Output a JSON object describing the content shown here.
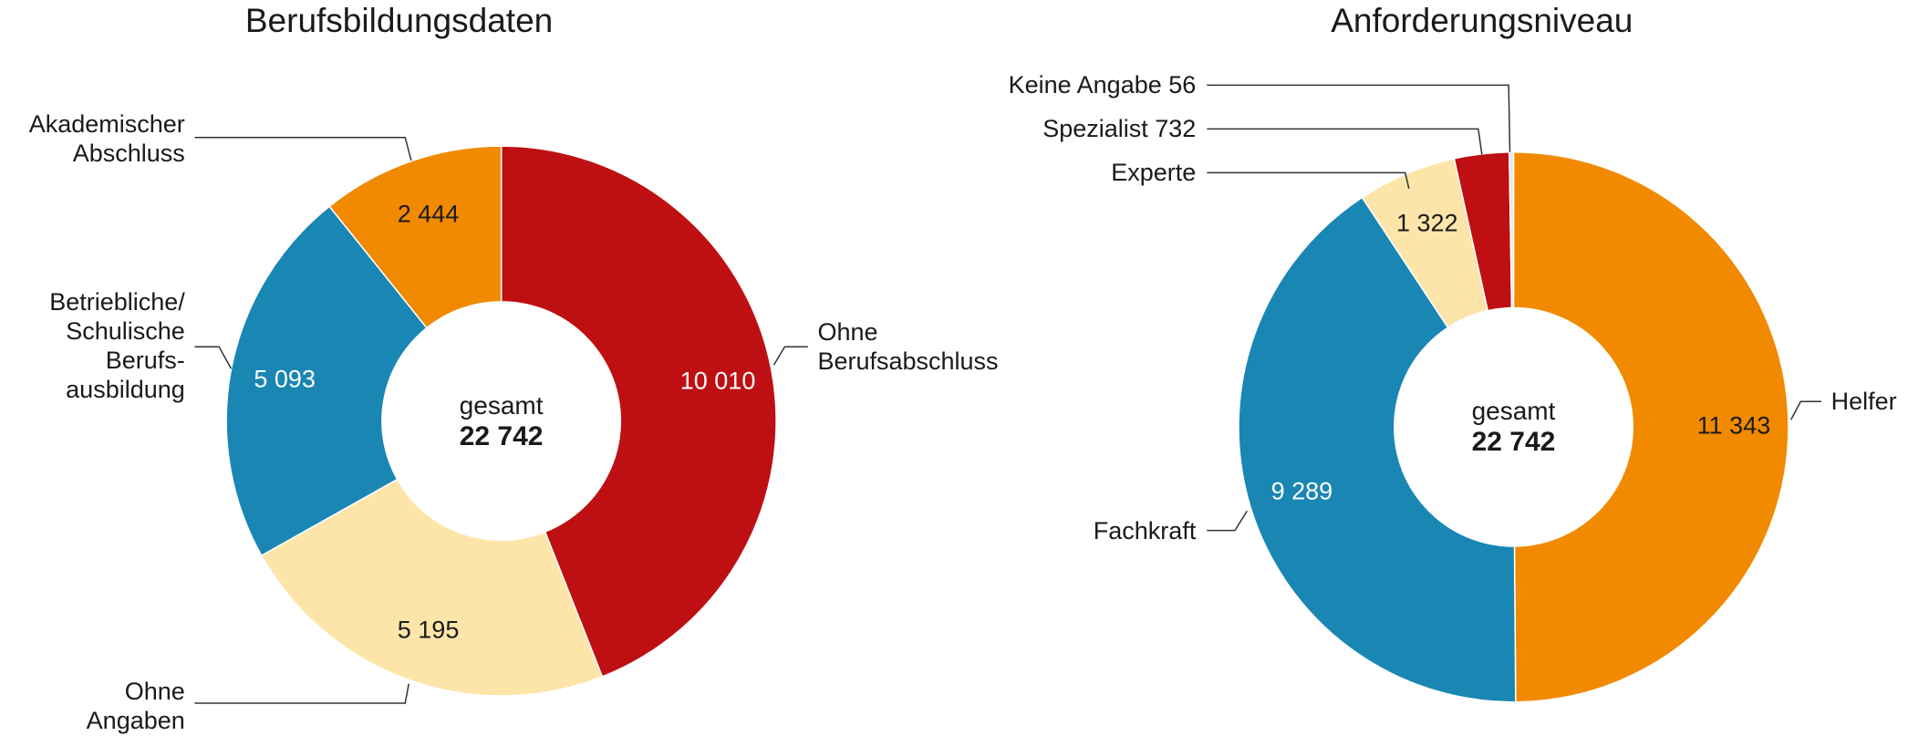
{
  "chart_data": [
    {
      "type": "donut",
      "title": "Berufsbildungsdaten",
      "categories": [
        "Ohne\nBerufsabschluss",
        "Ohne\nAngaben",
        "Betriebliche/\nSchulische\nBerufs-\nausbildung",
        "Akademischer\nAbschluss"
      ],
      "values": [
        10010,
        5195,
        5093,
        2444
      ],
      "value_labels": [
        "10 010",
        "5 195",
        "5 093",
        "2 444"
      ],
      "colors": [
        "#be0f13",
        "#fde5aa",
        "#1a86b3",
        "#f18a00"
      ],
      "center_label": "gesamt",
      "total": 22742,
      "total_label": "22 742"
    },
    {
      "type": "donut",
      "title": "Anforderungsniveau",
      "categories": [
        "Helfer",
        "Fachkraft",
        "Experte",
        "Spezialist",
        "Keine Angabe"
      ],
      "values": [
        11343,
        9289,
        1322,
        732,
        56
      ],
      "value_labels": [
        "11 343",
        "9 289",
        "1 322",
        "732",
        "56"
      ],
      "colors": [
        "#f18a00",
        "#1a86b3",
        "#fde5aa",
        "#be0f13",
        "#e6e6e6"
      ],
      "center_label": "gesamt",
      "total": 22742,
      "total_label": "22 742"
    }
  ]
}
